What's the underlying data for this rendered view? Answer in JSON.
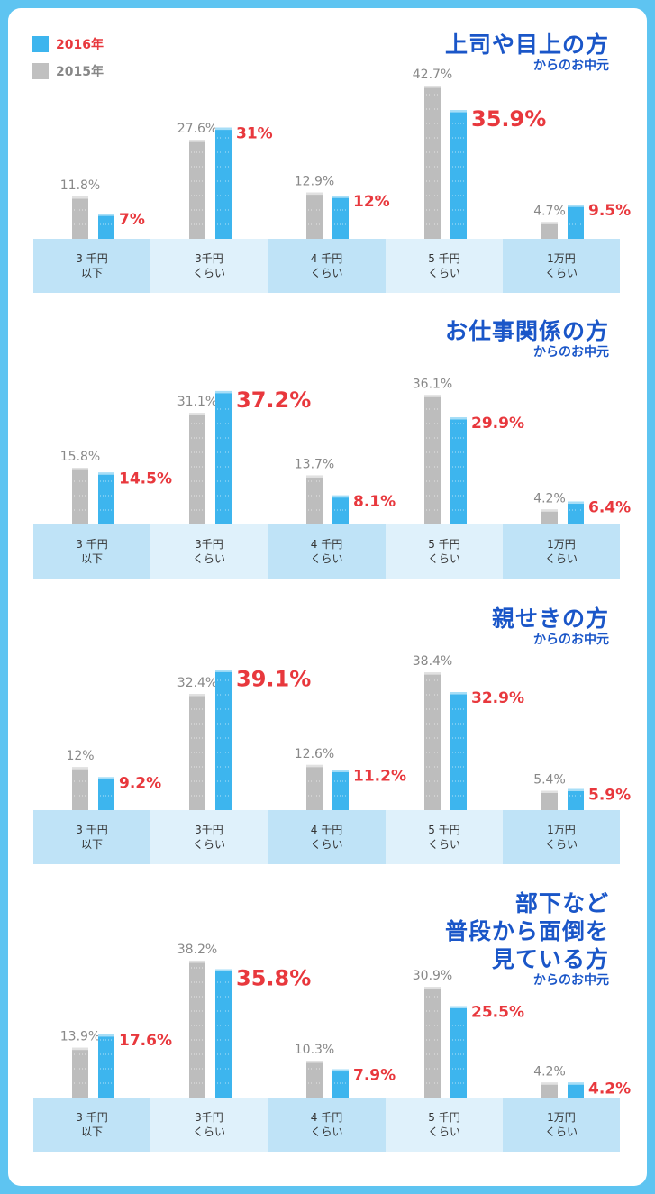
{
  "legend": [
    {
      "label": "2016年",
      "color": "#3db5ee",
      "text_color": "#e8383d"
    },
    {
      "label": "2015年",
      "color": "#c0c0c0",
      "text_color": "#888888"
    }
  ],
  "colors": {
    "series_2016": "#3db5ee",
    "series_2015": "#bdbdbd",
    "label_2016": "#e8383d",
    "label_2015": "#888888",
    "band_dark": "#bfe3f7",
    "band_light": "#dff1fb",
    "title": "#1a56c8"
  },
  "chart_data": [
    {
      "type": "bar",
      "title_lines": [
        "上司や目上の方"
      ],
      "subtitle": "からのお中元",
      "categories": [
        [
          "3 千円",
          "以下"
        ],
        [
          "3千円",
          "くらい"
        ],
        [
          "4 千円",
          "くらい"
        ],
        [
          "5 千円",
          "くらい"
        ],
        [
          "1万円",
          "くらい"
        ]
      ],
      "series": [
        {
          "name": "2015年",
          "values": [
            11.8,
            27.6,
            12.9,
            42.7,
            4.7
          ],
          "labels": [
            "11.8%",
            "27.6%",
            "12.9%",
            "42.7%",
            "4.7%"
          ]
        },
        {
          "name": "2016年",
          "values": [
            7,
            31,
            12,
            35.9,
            9.5
          ],
          "labels": [
            "7%",
            "31%",
            "12%",
            "35.9%",
            "9.5%"
          ],
          "highlight": 3
        }
      ]
    },
    {
      "type": "bar",
      "title_lines": [
        "お仕事関係の方"
      ],
      "subtitle": "からのお中元",
      "categories": [
        [
          "3 千円",
          "以下"
        ],
        [
          "3千円",
          "くらい"
        ],
        [
          "4 千円",
          "くらい"
        ],
        [
          "5 千円",
          "くらい"
        ],
        [
          "1万円",
          "くらい"
        ]
      ],
      "series": [
        {
          "name": "2015年",
          "values": [
            15.8,
            31.1,
            13.7,
            36.1,
            4.2
          ],
          "labels": [
            "15.8%",
            "31.1%",
            "13.7%",
            "36.1%",
            "4.2%"
          ]
        },
        {
          "name": "2016年",
          "values": [
            14.5,
            37.2,
            8.1,
            29.9,
            6.4
          ],
          "labels": [
            "14.5%",
            "37.2%",
            "8.1%",
            "29.9%",
            "6.4%"
          ],
          "highlight": 1
        }
      ]
    },
    {
      "type": "bar",
      "title_lines": [
        "親せきの方"
      ],
      "subtitle": "からのお中元",
      "categories": [
        [
          "3 千円",
          "以下"
        ],
        [
          "3千円",
          "くらい"
        ],
        [
          "4 千円",
          "くらい"
        ],
        [
          "5 千円",
          "くらい"
        ],
        [
          "1万円",
          "くらい"
        ]
      ],
      "series": [
        {
          "name": "2015年",
          "values": [
            12,
            32.4,
            12.6,
            38.4,
            5.4
          ],
          "labels": [
            "12%",
            "32.4%",
            "12.6%",
            "38.4%",
            "5.4%"
          ]
        },
        {
          "name": "2016年",
          "values": [
            9.2,
            39.1,
            11.2,
            32.9,
            5.9
          ],
          "labels": [
            "9.2%",
            "39.1%",
            "11.2%",
            "32.9%",
            "5.9%"
          ],
          "highlight": 1
        }
      ]
    },
    {
      "type": "bar",
      "title_lines": [
        "部下など",
        "普段から面倒を",
        "見ている方"
      ],
      "subtitle": "からのお中元",
      "categories": [
        [
          "3 千円",
          "以下"
        ],
        [
          "3千円",
          "くらい"
        ],
        [
          "4 千円",
          "くらい"
        ],
        [
          "5 千円",
          "くらい"
        ],
        [
          "1万円",
          "くらい"
        ]
      ],
      "series": [
        {
          "name": "2015年",
          "values": [
            13.9,
            38.2,
            10.3,
            30.9,
            4.2
          ],
          "labels": [
            "13.9%",
            "38.2%",
            "10.3%",
            "30.9%",
            "4.2%"
          ]
        },
        {
          "name": "2016年",
          "values": [
            17.6,
            35.8,
            7.9,
            25.5,
            4.2
          ],
          "labels": [
            "17.6%",
            "35.8%",
            "7.9%",
            "25.5%",
            "4.2%"
          ],
          "highlight": 1
        }
      ]
    }
  ]
}
